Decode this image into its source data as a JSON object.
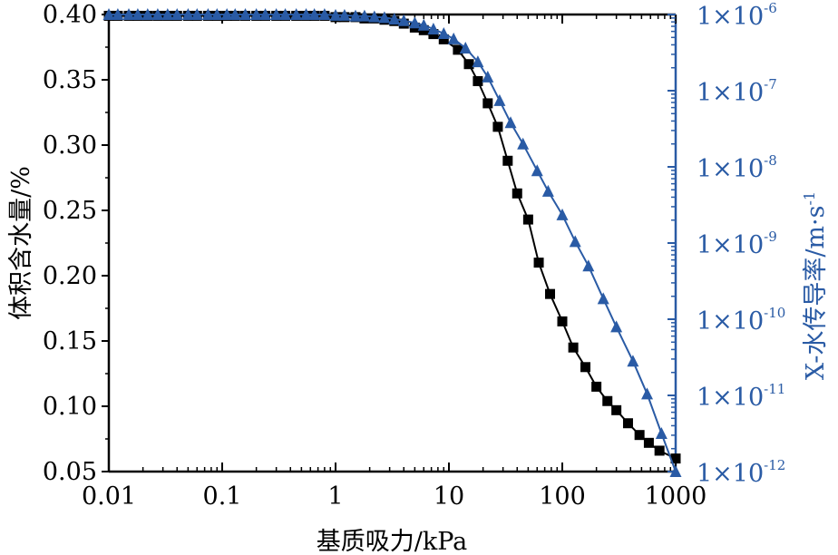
{
  "chart_data": {
    "type": "line",
    "xlabel": "基质吸力/kPa",
    "ylabel_left": "体积含水量/%",
    "ylabel_right": "X-水传导率/m·s",
    "ylabel_right_sup": "-1",
    "xscale": "log",
    "xlim": [
      0.01,
      1000
    ],
    "ylim_left": [
      0.05,
      0.4
    ],
    "ylim_right": [
      1e-12,
      1e-06
    ],
    "x_ticks": [
      {
        "value": 0.01,
        "label": "0.01"
      },
      {
        "value": 0.1,
        "label": "0.1"
      },
      {
        "value": 1,
        "label": "1"
      },
      {
        "value": 10,
        "label": "10"
      },
      {
        "value": 100,
        "label": "100"
      },
      {
        "value": 1000,
        "label": "1000"
      }
    ],
    "y_left_ticks": [
      {
        "value": 0.05,
        "label": "0.05"
      },
      {
        "value": 0.1,
        "label": "0.10"
      },
      {
        "value": 0.15,
        "label": "0.15"
      },
      {
        "value": 0.2,
        "label": "0.20"
      },
      {
        "value": 0.25,
        "label": "0.25"
      },
      {
        "value": 0.3,
        "label": "0.30"
      },
      {
        "value": 0.35,
        "label": "0.35"
      },
      {
        "value": 0.4,
        "label": "0.40"
      }
    ],
    "y_right_ticks": [
      {
        "value": -6,
        "base": "1×10",
        "exp": "-6"
      },
      {
        "value": -7,
        "base": "1×10",
        "exp": "-7"
      },
      {
        "value": -8,
        "base": "1×10",
        "exp": "-8"
      },
      {
        "value": -9,
        "base": "1×10",
        "exp": "-9"
      },
      {
        "value": -10,
        "base": "1×10",
        "exp": "-10"
      },
      {
        "value": -11,
        "base": "1×10",
        "exp": "-11"
      },
      {
        "value": -12,
        "base": "1×10",
        "exp": "-12"
      }
    ],
    "series": [
      {
        "axis": "left",
        "marker": "square",
        "color": "#000000",
        "points": [
          [
            0.01,
            0.399
          ],
          [
            0.012,
            0.399
          ],
          [
            0.015,
            0.399
          ],
          [
            0.018,
            0.399
          ],
          [
            0.022,
            0.399
          ],
          [
            0.027,
            0.399
          ],
          [
            0.033,
            0.399
          ],
          [
            0.04,
            0.399
          ],
          [
            0.05,
            0.399
          ],
          [
            0.06,
            0.399
          ],
          [
            0.075,
            0.399
          ],
          [
            0.09,
            0.399
          ],
          [
            0.11,
            0.399
          ],
          [
            0.13,
            0.399
          ],
          [
            0.16,
            0.399
          ],
          [
            0.2,
            0.399
          ],
          [
            0.24,
            0.399
          ],
          [
            0.3,
            0.399
          ],
          [
            0.36,
            0.399
          ],
          [
            0.45,
            0.399
          ],
          [
            0.55,
            0.399
          ],
          [
            0.65,
            0.399
          ],
          [
            0.8,
            0.399
          ],
          [
            1.0,
            0.398
          ],
          [
            1.2,
            0.398
          ],
          [
            1.5,
            0.398
          ],
          [
            1.8,
            0.397
          ],
          [
            2.2,
            0.397
          ],
          [
            2.7,
            0.396
          ],
          [
            3.3,
            0.395
          ],
          [
            4.0,
            0.393
          ],
          [
            5.0,
            0.39
          ],
          [
            6.0,
            0.388
          ],
          [
            7.3,
            0.385
          ],
          [
            9.0,
            0.381
          ],
          [
            12,
            0.373
          ],
          [
            15,
            0.362
          ],
          [
            18,
            0.349
          ],
          [
            22,
            0.332
          ],
          [
            27,
            0.314
          ],
          [
            33,
            0.288
          ],
          [
            40,
            0.263
          ],
          [
            50,
            0.243
          ],
          [
            62,
            0.21
          ],
          [
            78,
            0.186
          ],
          [
            100,
            0.165
          ],
          [
            125,
            0.145
          ],
          [
            160,
            0.13
          ],
          [
            200,
            0.115
          ],
          [
            250,
            0.104
          ],
          [
            300,
            0.097
          ],
          [
            380,
            0.087
          ],
          [
            480,
            0.078
          ],
          [
            580,
            0.072
          ],
          [
            720,
            0.066
          ],
          [
            1000,
            0.06
          ]
        ]
      },
      {
        "axis": "right",
        "marker": "triangle",
        "color": "#2a5ba5",
        "points": [
          [
            0.01,
            -6.0
          ],
          [
            0.012,
            -6.0
          ],
          [
            0.015,
            -6.0
          ],
          [
            0.018,
            -6.0
          ],
          [
            0.022,
            -6.0
          ],
          [
            0.027,
            -6.0
          ],
          [
            0.033,
            -6.0
          ],
          [
            0.04,
            -6.0
          ],
          [
            0.05,
            -6.0
          ],
          [
            0.06,
            -6.0
          ],
          [
            0.075,
            -6.0
          ],
          [
            0.09,
            -6.0
          ],
          [
            0.11,
            -6.0
          ],
          [
            0.13,
            -6.0
          ],
          [
            0.16,
            -6.0
          ],
          [
            0.2,
            -6.0
          ],
          [
            0.24,
            -6.0
          ],
          [
            0.3,
            -6.0
          ],
          [
            0.36,
            -6.0
          ],
          [
            0.45,
            -6.0
          ],
          [
            0.55,
            -6.0
          ],
          [
            0.65,
            -6.0
          ],
          [
            0.8,
            -6.0
          ],
          [
            1.0,
            -6.01
          ],
          [
            1.2,
            -6.01
          ],
          [
            1.5,
            -6.02
          ],
          [
            1.8,
            -6.02
          ],
          [
            2.2,
            -6.03
          ],
          [
            2.7,
            -6.04
          ],
          [
            3.3,
            -6.06
          ],
          [
            4.0,
            -6.08
          ],
          [
            5.0,
            -6.11
          ],
          [
            6.0,
            -6.14
          ],
          [
            7.3,
            -6.19
          ],
          [
            9.0,
            -6.25
          ],
          [
            11,
            -6.32
          ],
          [
            14,
            -6.44
          ],
          [
            18,
            -6.62
          ],
          [
            22,
            -6.82
          ],
          [
            28,
            -7.13
          ],
          [
            35,
            -7.42
          ],
          [
            45,
            -7.7
          ],
          [
            60,
            -8.05
          ],
          [
            75,
            -8.32
          ],
          [
            100,
            -8.63
          ],
          [
            130,
            -8.98
          ],
          [
            170,
            -9.3
          ],
          [
            230,
            -9.73
          ],
          [
            300,
            -10.1
          ],
          [
            420,
            -10.55
          ],
          [
            560,
            -10.98
          ],
          [
            750,
            -11.5
          ],
          [
            1000,
            -12.0
          ]
        ]
      }
    ]
  }
}
